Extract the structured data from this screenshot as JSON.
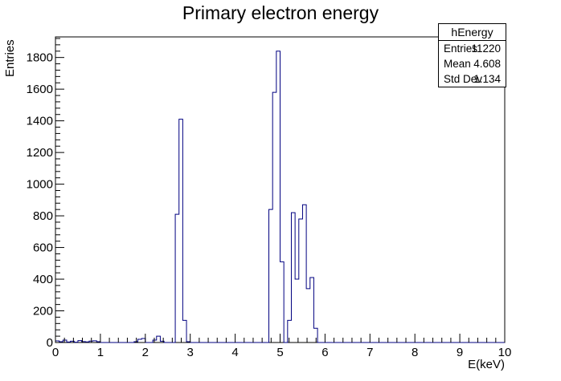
{
  "chart_data": {
    "type": "histogram",
    "title": "Primary electron energy",
    "xlabel": "E(keV)",
    "ylabel": "Entries",
    "xlim": [
      0,
      10
    ],
    "ylim": [
      0,
      1930
    ],
    "bins": 120,
    "x_ticks": [
      "0",
      "1",
      "2",
      "3",
      "4",
      "5",
      "6",
      "7",
      "8",
      "9",
      "10"
    ],
    "y_ticks": [
      "0",
      "200",
      "400",
      "600",
      "800",
      "1000",
      "1200",
      "1400",
      "1600",
      "1800"
    ],
    "line_color": "#000080",
    "grid": false,
    "stats_box": {
      "name": "hEnergy",
      "rows": [
        {
          "label": "Entries",
          "value": "11220"
        },
        {
          "label": "Mean",
          "value": "4.608"
        },
        {
          "label": "Std Dev",
          "value": "1.134"
        }
      ]
    },
    "counts": [
      10,
      5,
      15,
      3,
      8,
      2,
      12,
      6,
      4,
      9,
      11,
      5,
      0,
      0,
      0,
      0,
      0,
      0,
      0,
      0,
      0,
      5,
      20,
      25,
      0,
      0,
      15,
      40,
      8,
      0,
      0,
      0,
      810,
      1410,
      140,
      5,
      0,
      0,
      0,
      0,
      0,
      0,
      0,
      0,
      0,
      0,
      0,
      0,
      0,
      0,
      0,
      0,
      0,
      0,
      0,
      0,
      0,
      840,
      1580,
      1840,
      510,
      0,
      140,
      820,
      400,
      780,
      870,
      340,
      410,
      90,
      0,
      0,
      0,
      0,
      0,
      0,
      0,
      0,
      0,
      0,
      0,
      0,
      0,
      0,
      0,
      0,
      0,
      0,
      0,
      0,
      0,
      0,
      0,
      0,
      0,
      0,
      0,
      0,
      0,
      0,
      0,
      0,
      0,
      0,
      0,
      0,
      0,
      0,
      0,
      0,
      0,
      0,
      0,
      0,
      0,
      0,
      0,
      0,
      0,
      0
    ]
  }
}
